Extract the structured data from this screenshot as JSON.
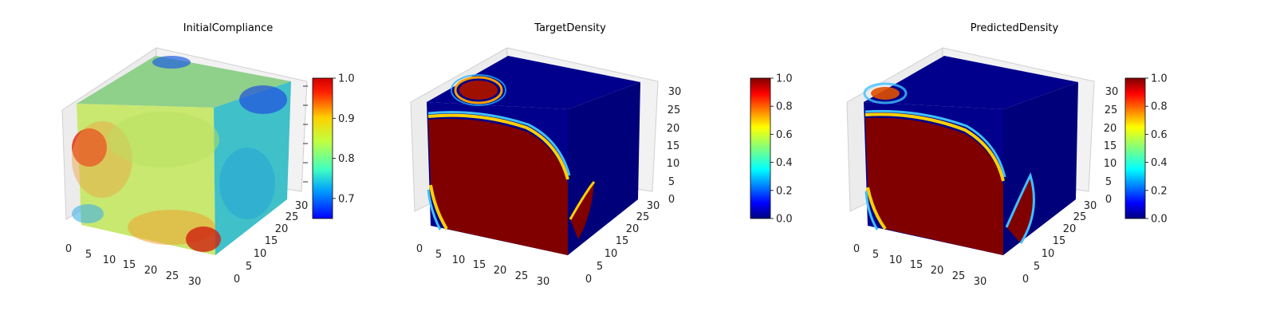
{
  "figure": {
    "colormap": "jet",
    "colormap_stops": [
      "#00007f",
      "#0000ff",
      "#007fff",
      "#00ffff",
      "#7fff7f",
      "#ffff00",
      "#ff7f00",
      "#ff0000",
      "#7f0000"
    ]
  },
  "chart_data": [
    {
      "type": "heatmap",
      "title": "InitialCompliance",
      "x_ticks": [
        "0",
        "5",
        "10",
        "15",
        "20",
        "25",
        "30"
      ],
      "y_ticks": [
        "0",
        "5",
        "10",
        "15",
        "20",
        "25",
        "30"
      ],
      "z_ticks": [],
      "xlim": [
        0,
        32
      ],
      "ylim": [
        0,
        32
      ],
      "zlim": [
        0,
        32
      ],
      "colorbar": {
        "range": [
          0.65,
          1.0
        ],
        "ticks": [
          "0.7",
          "0.8",
          "0.9",
          "1.0"
        ],
        "tick_values": [
          0.7,
          0.8,
          0.9,
          1.0
        ]
      }
    },
    {
      "type": "heatmap",
      "title": "TargetDensity",
      "x_ticks": [
        "0",
        "5",
        "10",
        "15",
        "20",
        "25",
        "30"
      ],
      "y_ticks": [
        "0",
        "5",
        "10",
        "15",
        "20",
        "25",
        "30"
      ],
      "z_ticks": [
        "0",
        "5",
        "10",
        "15",
        "20",
        "25",
        "30"
      ],
      "xlim": [
        0,
        32
      ],
      "ylim": [
        0,
        32
      ],
      "zlim": [
        0,
        32
      ],
      "colorbar": {
        "range": [
          0.0,
          1.0
        ],
        "ticks": [
          "0.0",
          "0.2",
          "0.4",
          "0.6",
          "0.8",
          "1.0"
        ],
        "tick_values": [
          0.0,
          0.2,
          0.4,
          0.6,
          0.8,
          1.0
        ]
      }
    },
    {
      "type": "heatmap",
      "title": "PredictedDensity",
      "x_ticks": [
        "0",
        "5",
        "10",
        "15",
        "20",
        "25",
        "30"
      ],
      "y_ticks": [
        "0",
        "5",
        "10",
        "15",
        "20",
        "25",
        "30"
      ],
      "z_ticks": [
        "0",
        "5",
        "10",
        "15",
        "20",
        "25",
        "30"
      ],
      "xlim": [
        0,
        32
      ],
      "ylim": [
        0,
        32
      ],
      "zlim": [
        0,
        32
      ],
      "colorbar": {
        "range": [
          0.0,
          1.0
        ],
        "ticks": [
          "0.0",
          "0.2",
          "0.4",
          "0.6",
          "0.8",
          "1.0"
        ],
        "tick_values": [
          0.0,
          0.2,
          0.4,
          0.6,
          0.8,
          1.0
        ]
      }
    }
  ]
}
